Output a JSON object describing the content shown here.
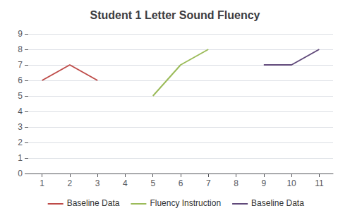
{
  "chart_data": {
    "type": "line",
    "title": "Student 1 Letter Sound Fluency",
    "series": [
      {
        "name": "Baseline Data",
        "color": "#BE4B48",
        "x": [
          1,
          2,
          3
        ],
        "values": [
          6,
          7,
          6
        ]
      },
      {
        "name": "Fluency Instruction",
        "color": "#9BBB59",
        "x": [
          5,
          6,
          7
        ],
        "values": [
          5,
          7,
          8
        ]
      },
      {
        "name": "Baseline Data",
        "color": "#60497A",
        "x": [
          9,
          10,
          11
        ],
        "values": [
          7,
          7,
          8
        ]
      }
    ],
    "xlim": [
      0.5,
      11.5
    ],
    "xticks": [
      1,
      2,
      3,
      4,
      5,
      6,
      7,
      8,
      9,
      10,
      11
    ],
    "ylim": [
      0,
      9
    ],
    "yticks": [
      0,
      1,
      2,
      3,
      4,
      5,
      6,
      7,
      8,
      9
    ],
    "grid": true,
    "legend": "bottom"
  }
}
